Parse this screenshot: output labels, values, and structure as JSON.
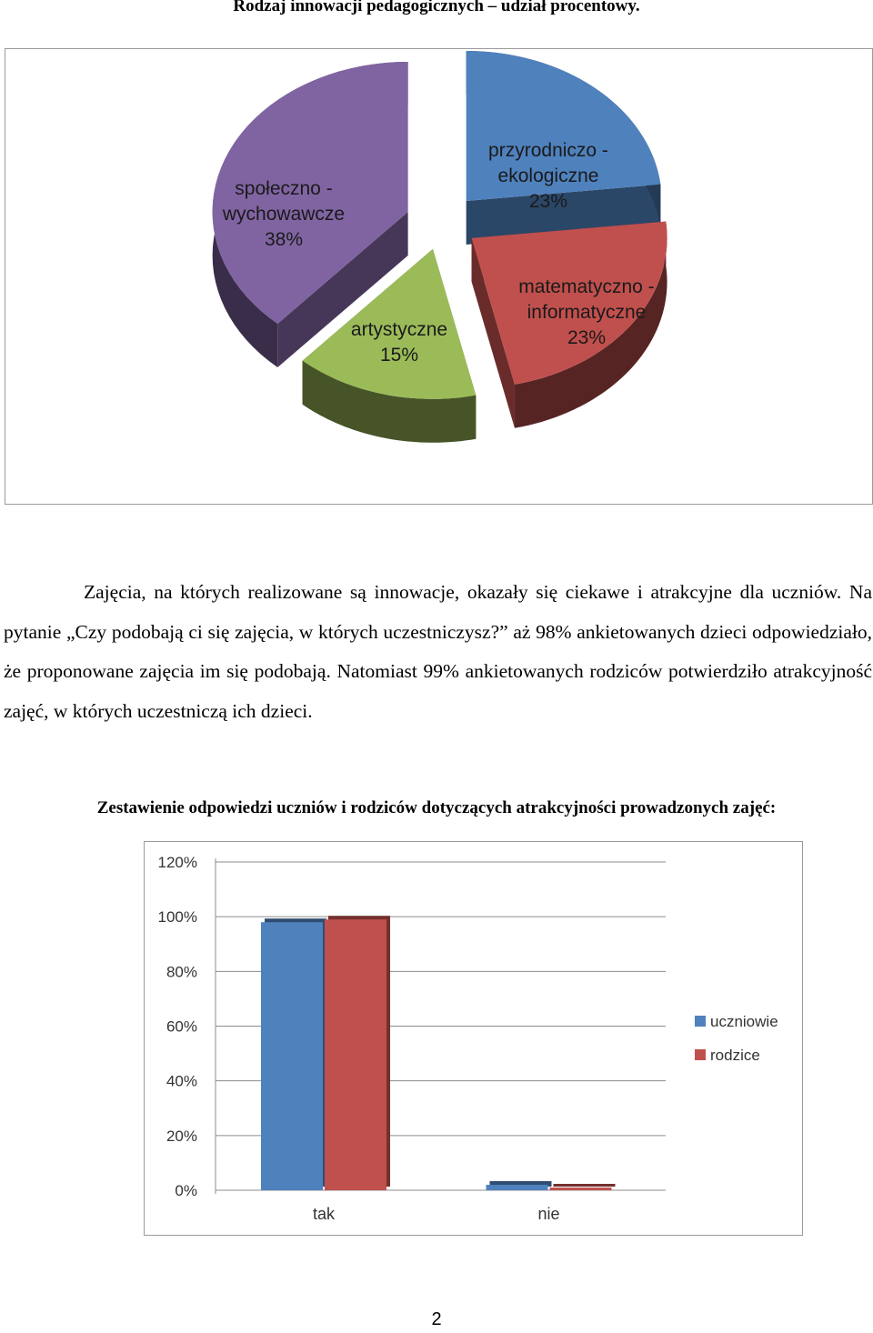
{
  "pie_heading": "Rodzaj innowacji pedagogicznych – udział procentowy.",
  "paragraph": "Zajęcia, na których realizowane są innowacje, okazały się ciekawe i atrakcyjne dla uczniów. Na pytanie „Czy podobają ci się zajęcia, w których uczestniczysz?” aż 98% ankietowanych dzieci odpowiedziało, że proponowane zajęcia im się podobają. Natomiast 99% ankietowanych rodziców potwierdziło atrakcyjność zajęć, w których uczestniczą ich dzieci.",
  "bar_heading": "Zestawienie odpowiedzi uczniów i rodziców dotyczących atrakcyjności prowadzonych zajęć:",
  "page_number": "2",
  "chart_data": [
    {
      "type": "pie",
      "style": "3d-exploded",
      "slices": [
        {
          "label": "przyrodniczo - ekologiczne",
          "value": 23,
          "value_label": "23%",
          "color": "#4f81bd"
        },
        {
          "label": "matematyczno - informatyczne",
          "value": 23,
          "value_label": "23%",
          "color": "#c0504d"
        },
        {
          "label": "artystyczne",
          "value": 15,
          "value_label": "15%",
          "color": "#9bbb59"
        },
        {
          "label": "społeczno - wychowawcze",
          "value": 38,
          "value_label": "38%",
          "color": "#8064a2"
        }
      ]
    },
    {
      "type": "bar",
      "style": "3d",
      "categories": [
        "tak",
        "nie"
      ],
      "series": [
        {
          "name": "uczniowie",
          "values": [
            98,
            2
          ],
          "color": "#4f81bd"
        },
        {
          "name": "rodzice",
          "values": [
            99,
            1
          ],
          "color": "#c0504d"
        }
      ],
      "ylim": [
        0,
        120
      ],
      "yticks": [
        "0%",
        "20%",
        "40%",
        "60%",
        "80%",
        "100%",
        "120%"
      ],
      "grid": true,
      "legend": "right"
    }
  ]
}
